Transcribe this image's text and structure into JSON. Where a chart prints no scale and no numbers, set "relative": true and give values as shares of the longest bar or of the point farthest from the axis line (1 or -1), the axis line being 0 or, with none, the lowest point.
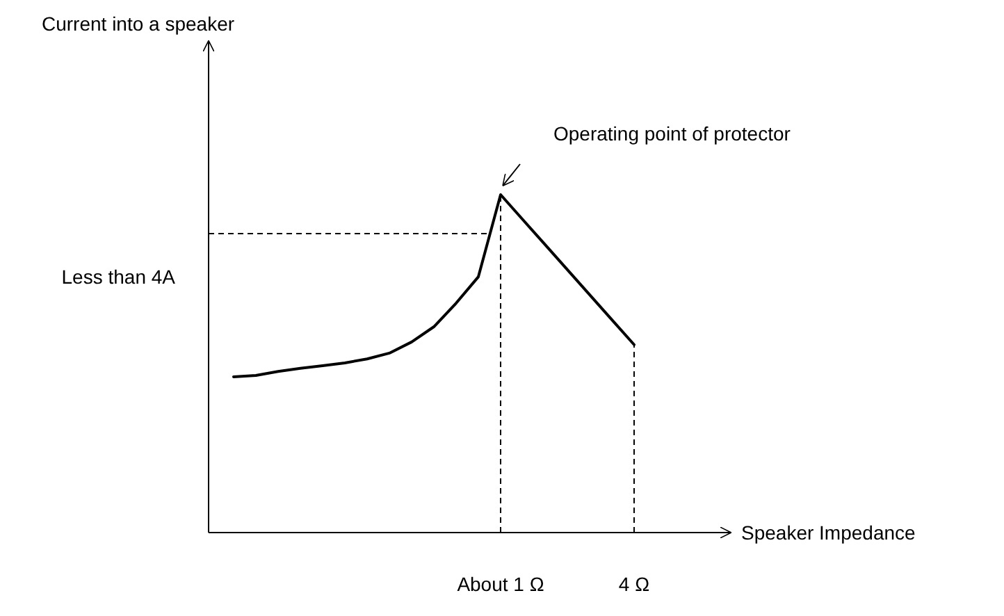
{
  "chart_data": {
    "type": "line",
    "relative": true,
    "xlabel": "Speaker Impedance",
    "categories": [
      null,
      null,
      null,
      null,
      null,
      null,
      null,
      null,
      null,
      null,
      null,
      null,
      "About 1 Ω",
      null,
      null,
      null,
      null,
      null,
      "4 Ω"
    ],
    "series": [
      {
        "color": "#000000",
        "values": [
          0.461,
          0.465,
          0.477,
          0.486,
          0.494,
          0.502,
          0.514,
          0.531,
          0.564,
          0.609,
          0.679,
          0.757,
          1,
          0.926,
          0.852,
          0.778,
          0.704,
          0.63,
          0.556
        ]
      }
    ],
    "ref_lines": [
      {
        "axis": "y",
        "value": 0.885,
        "label": "Less than 4A",
        "line_style": "dashed",
        "color": "#000000"
      }
    ],
    "annotations": [
      "Current into a speaker",
      "Operating point of protector"
    ]
  }
}
